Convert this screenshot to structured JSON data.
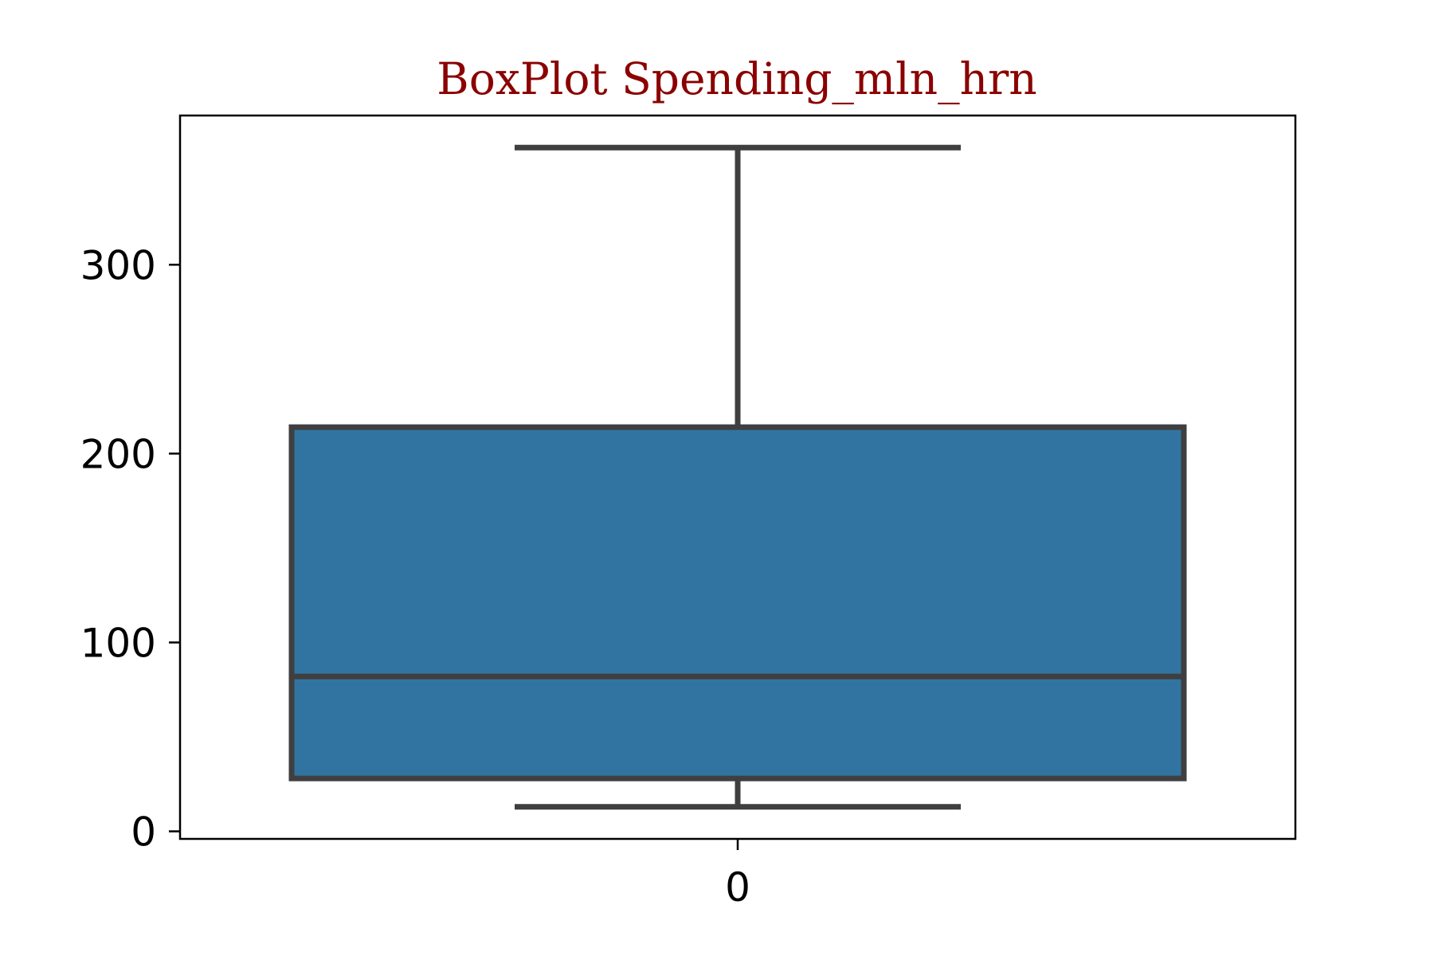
{
  "chart_data": {
    "type": "box",
    "title": "BoxPlot Spending_mln_hrn",
    "xlabel": "",
    "ylabel": "",
    "categories": [
      "0"
    ],
    "boxes": [
      {
        "category": "0",
        "whisker_low": 13,
        "q1": 28,
        "median": 82,
        "q3": 214,
        "whisker_high": 362
      }
    ],
    "ylim": [
      -4,
      379
    ],
    "yticks": [
      0,
      100,
      200,
      300
    ],
    "ytick_labels": [
      "0",
      "100",
      "200",
      "300"
    ],
    "grid": false,
    "colors": {
      "box_fill": "#3274a1",
      "box_edge": "#3f3f3f",
      "title": "#8b0000",
      "axes": "#000000"
    }
  }
}
